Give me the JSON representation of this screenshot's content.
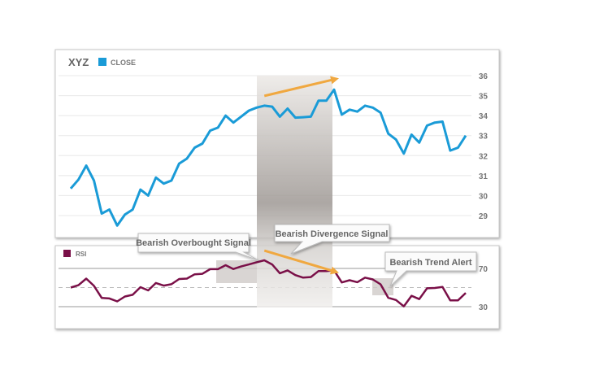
{
  "chart_data": [
    {
      "type": "line",
      "title": "XYZ",
      "legend": [
        {
          "label": "CLOSE",
          "color": "#1a9bd7"
        }
      ],
      "legend_placement": "top-left",
      "ylim": [
        28.3,
        36.2
      ],
      "yticks": [
        29,
        30,
        31,
        32,
        33,
        34,
        35,
        36
      ],
      "grid": true,
      "series": [
        {
          "name": "CLOSE",
          "color": "#1a9bd7",
          "values": [
            30.35,
            30.8,
            31.5,
            30.75,
            29.1,
            29.3,
            28.5,
            29.05,
            29.3,
            30.3,
            30.0,
            30.9,
            30.6,
            30.75,
            31.6,
            31.85,
            32.4,
            32.6,
            33.25,
            33.4,
            34.0,
            33.65,
            33.95,
            34.25,
            34.4,
            34.5,
            34.45,
            33.95,
            34.35,
            33.9,
            33.92,
            33.95,
            34.75,
            34.75,
            35.3,
            34.05,
            34.3,
            34.2,
            34.5,
            34.4,
            34.15,
            33.1,
            32.8,
            32.1,
            33.05,
            32.65,
            33.5,
            33.65,
            33.7,
            32.25,
            32.4,
            33.0
          ]
        }
      ],
      "annotation_arrow": {
        "color": "#f0a840",
        "from_index": 25,
        "to_index": 34,
        "direction": "up"
      }
    },
    {
      "type": "line",
      "title": "",
      "legend": [
        {
          "label": "RSI",
          "color": "#7a1048"
        }
      ],
      "legend_placement": "top-left",
      "ylim": [
        15,
        90
      ],
      "yticks": [
        30,
        70
      ],
      "midline": 50,
      "series": [
        {
          "name": "RSI",
          "color": "#7a1048",
          "values": [
            50,
            52.5,
            59.4,
            51.8,
            39.2,
            38.6,
            35.5,
            40.6,
            42.4,
            50.4,
            47,
            54.8,
            52,
            53.5,
            58.9,
            59.4,
            63.9,
            64.4,
            69.2,
            69.2,
            73.4,
            69.4,
            72,
            74.2,
            76.5,
            78.5,
            74.2,
            65,
            68,
            63,
            60.4,
            61,
            67.3,
            67.3,
            68,
            55.4,
            57.7,
            55.6,
            60.4,
            58.5,
            53.4,
            39.3,
            37,
            30.3,
            41.4,
            37.9,
            49.2,
            49.6,
            50.6,
            36.6,
            36.6,
            44.4
          ]
        }
      ],
      "annotation_arrow": {
        "color": "#f0a840",
        "from_index": 25,
        "to_index": 34,
        "direction": "down"
      }
    }
  ],
  "callouts": {
    "overbought": "Bearish Overbought Signal",
    "divergence": "Bearish Divergence Signal",
    "trend": "Bearish Trend Alert"
  }
}
